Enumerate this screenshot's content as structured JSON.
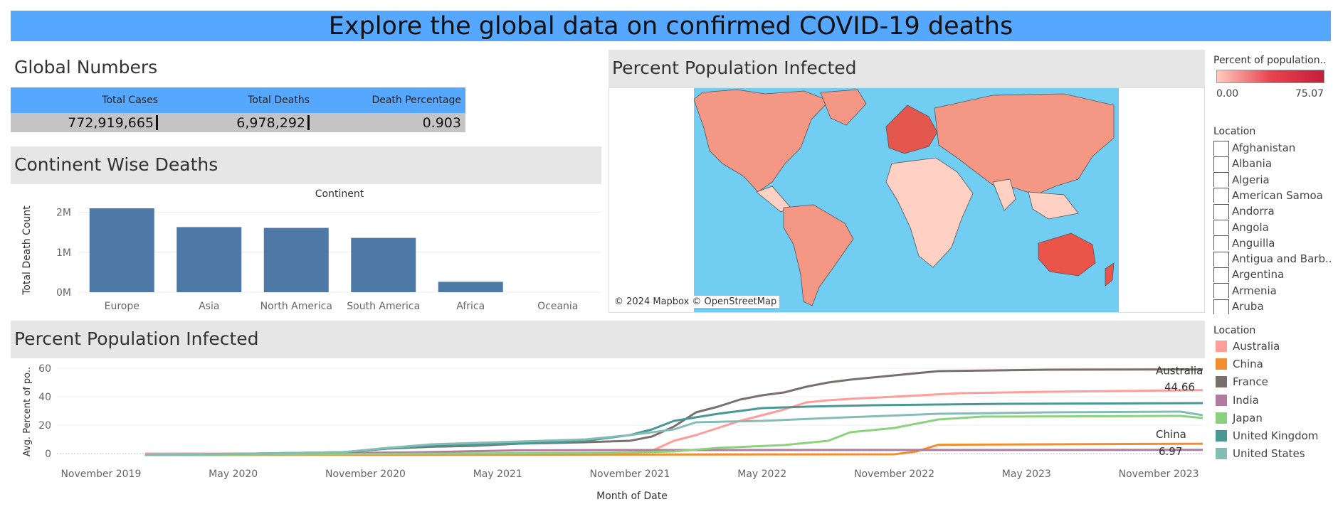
{
  "dashboard_title": "Explore the global data on confirmed COVID-19 deaths",
  "global_numbers": {
    "title": "Global Numbers",
    "headers": [
      "Total Cases",
      "Total Deaths",
      "Death Percentage"
    ],
    "values": [
      "772,919,665",
      "6,978,292",
      "0.903"
    ]
  },
  "continent_panel": {
    "title": "Continent Wise Deaths",
    "column_header": "Continent",
    "ylabel": "Total Death Count",
    "yticks": [
      "2M",
      "1M",
      "0M"
    ]
  },
  "map_panel": {
    "title": "Percent Population Infected",
    "attribution": "© 2024 Mapbox © OpenStreetMap",
    "colors": {
      "ocean": "#71cdf1",
      "low": "#ffd0c4",
      "mid": "#f59785",
      "high": "#c8203a"
    }
  },
  "color_legend": {
    "title": "Percent of population..",
    "min": "0.00",
    "max": "75.07"
  },
  "location_filter": {
    "title": "Location",
    "items": [
      "Afghanistan",
      "Albania",
      "Algeria",
      "American Samoa",
      "Andorra",
      "Angola",
      "Anguilla",
      "Antigua and Barb..",
      "Argentina",
      "Armenia",
      "Aruba"
    ]
  },
  "line_panel": {
    "title": "Percent Population Infected",
    "ylabel": "Avg. Percent of po..",
    "xlabel": "Month of Date",
    "legend_title": "Location",
    "labels": {
      "australia_name": "Australia",
      "australia_value": "44.66",
      "china_name": "China",
      "china_value": "6.97"
    }
  },
  "chart_data": [
    {
      "type": "bar",
      "title": "Continent Wise Deaths",
      "xlabel": "Continent",
      "ylabel": "Total Death Count",
      "categories": [
        "Europe",
        "Asia",
        "North America",
        "South America",
        "Africa",
        "Oceania"
      ],
      "values": [
        2100000,
        1630000,
        1610000,
        1360000,
        260000,
        30000
      ],
      "ylim": [
        0,
        2100000
      ],
      "yticks": [
        0,
        1000000,
        2000000
      ],
      "color": "#4e79a7",
      "grid": true
    },
    {
      "type": "line",
      "title": "Percent Population Infected",
      "xlabel": "Month of Date",
      "ylabel": "Avg. Percent of po..",
      "ylim": [
        -3,
        62
      ],
      "yticks": [
        0,
        20,
        40,
        60
      ],
      "xrange": [
        "2019-09",
        "2024-01"
      ],
      "xticks": [
        {
          "date": "2019-11",
          "label": "November 2019"
        },
        {
          "date": "2020-05",
          "label": "May 2020"
        },
        {
          "date": "2020-11",
          "label": "November 2020"
        },
        {
          "date": "2021-05",
          "label": "May 2021"
        },
        {
          "date": "2021-11",
          "label": "November 2021"
        },
        {
          "date": "2022-05",
          "label": "May 2022"
        },
        {
          "date": "2022-11",
          "label": "November 2022"
        },
        {
          "date": "2023-05",
          "label": "May 2023"
        },
        {
          "date": "2023-11",
          "label": "November 2023"
        }
      ],
      "legend": "right",
      "series": [
        {
          "name": "Australia",
          "color": "#ff9d9a",
          "points": [
            [
              "2020-01",
              0
            ],
            [
              "2021-11",
              0.2
            ],
            [
              "2021-12",
              2
            ],
            [
              "2022-01",
              9
            ],
            [
              "2022-02",
              13
            ],
            [
              "2022-03",
              18
            ],
            [
              "2022-04",
              23
            ],
            [
              "2022-05",
              27
            ],
            [
              "2022-06",
              31
            ],
            [
              "2022-07",
              36
            ],
            [
              "2022-08",
              37.5
            ],
            [
              "2022-09",
              38.5
            ],
            [
              "2022-11",
              40
            ],
            [
              "2023-02",
              42.5
            ],
            [
              "2023-06",
              43.5
            ],
            [
              "2024-01",
              44.66
            ]
          ]
        },
        {
          "name": "China",
          "color": "#f28e2b",
          "points": [
            [
              "2020-01",
              -1
            ],
            [
              "2022-11",
              -0.5
            ],
            [
              "2022-12",
              1.5
            ],
            [
              "2023-01",
              6.2
            ],
            [
              "2024-01",
              6.97
            ]
          ]
        },
        {
          "name": "France",
          "color": "#79706e",
          "points": [
            [
              "2020-01",
              -1
            ],
            [
              "2020-04",
              -0.5
            ],
            [
              "2020-10",
              1
            ],
            [
              "2020-12",
              3.5
            ],
            [
              "2021-02",
              4.8
            ],
            [
              "2021-04",
              5.5
            ],
            [
              "2021-06",
              7
            ],
            [
              "2021-09",
              8
            ],
            [
              "2021-11",
              9
            ],
            [
              "2021-12",
              12
            ],
            [
              "2022-01",
              19
            ],
            [
              "2022-02",
              29
            ],
            [
              "2022-03",
              33
            ],
            [
              "2022-04",
              38
            ],
            [
              "2022-05",
              41
            ],
            [
              "2022-06",
              43
            ],
            [
              "2022-07",
              47
            ],
            [
              "2022-08",
              50
            ],
            [
              "2022-09",
              52
            ],
            [
              "2022-11",
              55
            ],
            [
              "2023-01",
              58
            ],
            [
              "2023-06",
              59
            ],
            [
              "2024-01",
              59.2
            ]
          ]
        },
        {
          "name": "India",
          "color": "#b07aa1",
          "points": [
            [
              "2020-01",
              -1
            ],
            [
              "2020-06",
              0
            ],
            [
              "2021-01",
              0.8
            ],
            [
              "2021-06",
              2.3
            ],
            [
              "2021-11",
              2.5
            ],
            [
              "2024-01",
              2.6
            ]
          ]
        },
        {
          "name": "Japan",
          "color": "#8cd17d",
          "points": [
            [
              "2020-01",
              -1
            ],
            [
              "2021-10",
              0.5
            ],
            [
              "2022-01",
              1.5
            ],
            [
              "2022-03",
              4
            ],
            [
              "2022-06",
              6
            ],
            [
              "2022-08",
              9
            ],
            [
              "2022-09",
              15
            ],
            [
              "2022-11",
              18
            ],
            [
              "2023-01",
              24
            ],
            [
              "2023-03",
              26
            ],
            [
              "2023-12",
              26.5
            ],
            [
              "2024-01",
              25
            ]
          ]
        },
        {
          "name": "United Kingdom",
          "color": "#499894",
          "points": [
            [
              "2020-01",
              -1
            ],
            [
              "2020-06",
              0
            ],
            [
              "2020-10",
              1
            ],
            [
              "2020-12",
              3.5
            ],
            [
              "2021-02",
              5.5
            ],
            [
              "2021-06",
              7
            ],
            [
              "2021-09",
              9
            ],
            [
              "2021-11",
              13
            ],
            [
              "2021-12",
              17
            ],
            [
              "2022-01",
              23
            ],
            [
              "2022-03",
              28
            ],
            [
              "2022-05",
              32
            ],
            [
              "2022-07",
              33
            ],
            [
              "2022-10",
              34
            ],
            [
              "2023-04",
              35
            ],
            [
              "2024-01",
              35.5
            ]
          ]
        },
        {
          "name": "United States",
          "color": "#86bcb6",
          "points": [
            [
              "2020-01",
              -1
            ],
            [
              "2020-06",
              0
            ],
            [
              "2020-10",
              1
            ],
            [
              "2020-12",
              4
            ],
            [
              "2021-02",
              6.5
            ],
            [
              "2021-06",
              8.5
            ],
            [
              "2021-09",
              10
            ],
            [
              "2021-11",
              13
            ],
            [
              "2021-12",
              15
            ],
            [
              "2022-01",
              17
            ],
            [
              "2022-02",
              22
            ],
            [
              "2022-05",
              23
            ],
            [
              "2022-08",
              25
            ],
            [
              "2023-01",
              28
            ],
            [
              "2023-06",
              29
            ],
            [
              "2023-12",
              29.5
            ],
            [
              "2024-01",
              27
            ]
          ]
        }
      ]
    }
  ]
}
